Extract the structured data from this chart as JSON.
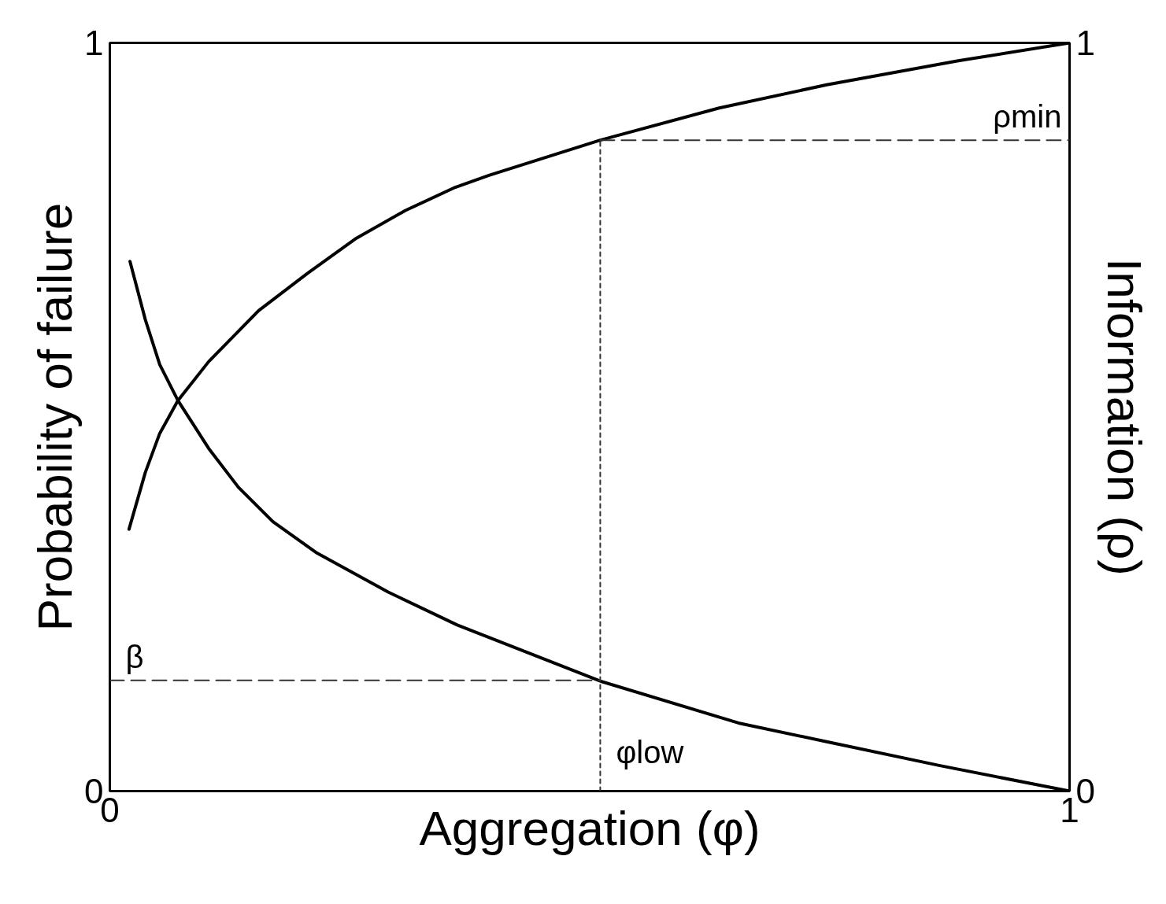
{
  "chart_data": {
    "type": "line",
    "xlabel": "Aggregation (φ)",
    "ylabel": "Probability of failure",
    "y2label": "Information (ρ)",
    "xlim": [
      0,
      1
    ],
    "xticks": [
      0,
      1
    ],
    "ylim": [
      0,
      1
    ],
    "yticks": [
      0,
      1
    ],
    "y2lim": [
      0,
      1
    ],
    "y2ticks": [
      0,
      1
    ],
    "line_style": "solid",
    "series": [
      {
        "color": "#000000",
        "x": [
          0.021,
          0.037,
          0.052,
          0.071,
          0.103,
          0.134,
          0.17,
          0.216,
          0.29,
          0.362,
          0.511,
          0.655,
          0.747,
          0.865,
          1.0
        ],
        "values": [
          0.708,
          0.63,
          0.57,
          0.522,
          0.458,
          0.406,
          0.36,
          0.318,
          0.266,
          0.222,
          0.147,
          0.091,
          0.066,
          0.034,
          0.0
        ]
      },
      {
        "color": "#000000",
        "x": [
          0.02,
          0.037,
          0.052,
          0.071,
          0.103,
          0.155,
          0.206,
          0.257,
          0.308,
          0.36,
          0.395,
          0.511,
          0.635,
          0.747,
          0.884,
          1.0
        ],
        "values": [
          0.35,
          0.426,
          0.478,
          0.522,
          0.574,
          0.642,
          0.692,
          0.739,
          0.776,
          0.807,
          0.823,
          0.87,
          0.913,
          0.944,
          0.976,
          1.0
        ]
      },
      {
        "color": "#333333",
        "line_style": "dashed",
        "x": [
          0,
          0.511
        ],
        "values": [
          0.148,
          0.148
        ]
      },
      {
        "color": "#333333",
        "line_style": "dashed",
        "x": [
          0.511,
          1
        ],
        "values": [
          0.87,
          0.87
        ]
      },
      {
        "color": "#333333",
        "line_style": "dotted",
        "x": [
          0.511,
          0.511
        ],
        "values": [
          0,
          0.87
        ]
      }
    ],
    "annotations": [
      {
        "text": "β",
        "x": 0,
        "y": 0.148
      },
      {
        "text": "ρmin",
        "x": 1,
        "y": 0.87
      },
      {
        "text": "φlow",
        "x": 0.511,
        "y": 0.02
      }
    ]
  }
}
